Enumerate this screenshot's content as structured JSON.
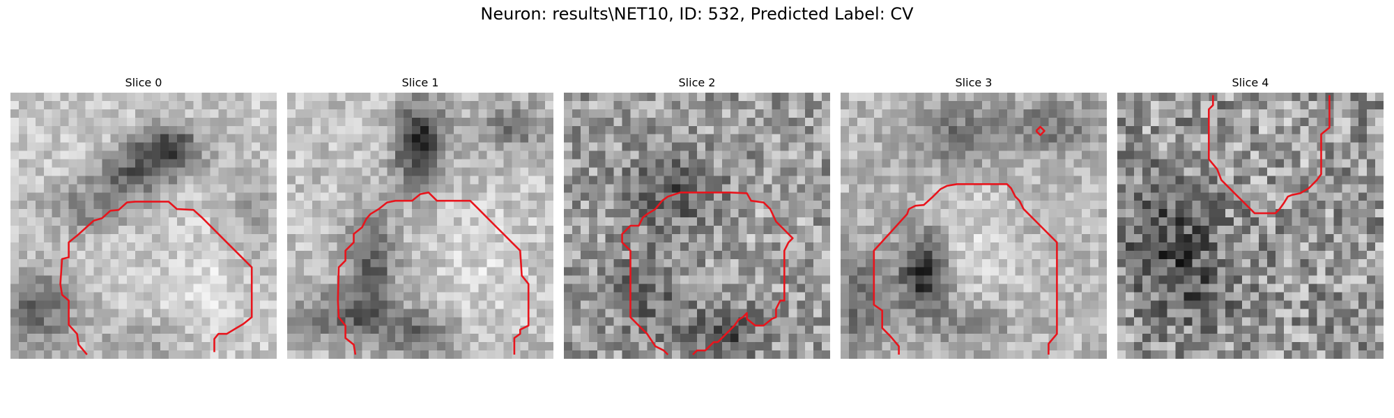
{
  "figure": {
    "title": "Neuron: results\\NET10, ID: 532, Predicted Label: CV"
  },
  "slices": [
    {
      "title": "Slice 0"
    },
    {
      "title": "Slice 1"
    },
    {
      "title": "Slice 2"
    },
    {
      "title": "Slice 3"
    },
    {
      "title": "Slice 4"
    }
  ],
  "colors": {
    "contour": "#e8141c",
    "background": "#ffffff"
  }
}
